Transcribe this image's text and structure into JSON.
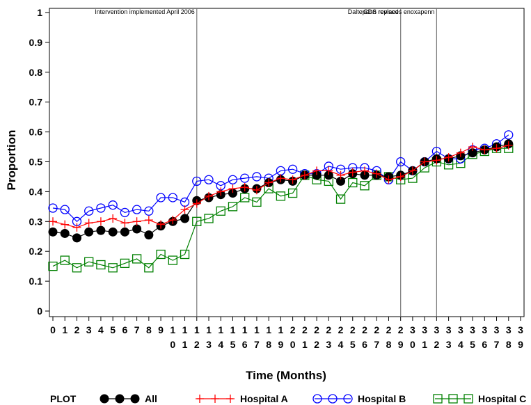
{
  "chart_data": {
    "type": "line",
    "title": "",
    "xlabel": "Time (Months)",
    "ylabel": "Proportion",
    "ylim": [
      0,
      1
    ],
    "xlim": [
      0,
      39
    ],
    "yticks": [
      "0",
      "0.1",
      "0.2",
      "0.3",
      "0.4",
      "0.5",
      "0.6",
      "0.7",
      "0.8",
      "0.9",
      "1"
    ],
    "x": [
      0,
      1,
      2,
      3,
      4,
      5,
      6,
      7,
      8,
      9,
      10,
      11,
      12,
      13,
      14,
      15,
      16,
      17,
      18,
      19,
      20,
      21,
      22,
      23,
      24,
      25,
      26,
      27,
      28,
      29,
      30,
      31,
      32,
      33,
      34,
      35,
      36,
      37,
      38,
      39
    ],
    "vlines": [
      {
        "x": 12,
        "label": "Intervention implemented April 2006"
      },
      {
        "x": 29,
        "label": "CDS revised"
      },
      {
        "x": 32,
        "label": "Daltepenn replaces enoxapenn"
      }
    ],
    "series": [
      {
        "name": "All",
        "color": "#000000",
        "marker": "filled-circle",
        "values": [
          0.265,
          0.26,
          0.245,
          0.265,
          0.27,
          0.265,
          0.265,
          0.275,
          0.255,
          0.285,
          0.3,
          0.31,
          0.37,
          0.38,
          0.39,
          0.395,
          0.41,
          0.41,
          0.43,
          0.44,
          0.435,
          0.455,
          0.455,
          0.455,
          0.435,
          0.46,
          0.455,
          0.455,
          0.45,
          0.455,
          0.47,
          0.5,
          0.51,
          0.51,
          0.52,
          0.53,
          0.54,
          0.55,
          0.56,
          null
        ]
      },
      {
        "name": "Hospital A",
        "color": "#ff0000",
        "marker": "plus",
        "values": [
          0.3,
          0.29,
          0.28,
          0.295,
          0.3,
          0.31,
          0.295,
          0.3,
          0.305,
          0.29,
          0.305,
          0.34,
          0.36,
          0.385,
          0.4,
          0.41,
          0.415,
          0.405,
          0.43,
          0.445,
          0.44,
          0.455,
          0.47,
          0.47,
          0.455,
          0.465,
          0.47,
          0.46,
          0.44,
          0.45,
          0.47,
          0.5,
          0.505,
          0.515,
          0.53,
          0.55,
          0.54,
          0.545,
          0.555,
          null
        ]
      },
      {
        "name": "Hospital B",
        "color": "#0000ff",
        "marker": "open-circle",
        "values": [
          0.345,
          0.34,
          0.3,
          0.335,
          0.345,
          0.355,
          0.33,
          0.34,
          0.335,
          0.38,
          0.38,
          0.365,
          0.435,
          0.44,
          0.42,
          0.44,
          0.445,
          0.45,
          0.445,
          0.47,
          0.475,
          0.46,
          0.46,
          0.485,
          0.475,
          0.48,
          0.48,
          0.47,
          0.44,
          0.5,
          0.47,
          0.5,
          0.535,
          0.51,
          0.51,
          0.54,
          0.545,
          0.56,
          0.59,
          null
        ]
      },
      {
        "name": "Hospital C",
        "color": "#008000",
        "marker": "open-square",
        "values": [
          0.15,
          0.17,
          0.145,
          0.165,
          0.155,
          0.145,
          0.16,
          0.175,
          0.145,
          0.19,
          0.17,
          0.19,
          0.3,
          0.31,
          0.335,
          0.35,
          0.38,
          0.365,
          0.41,
          0.385,
          0.395,
          0.455,
          0.44,
          0.435,
          0.375,
          0.43,
          0.42,
          0.455,
          0.45,
          0.44,
          0.445,
          0.48,
          0.5,
          0.49,
          0.495,
          0.525,
          0.535,
          0.545,
          0.545,
          null
        ]
      }
    ],
    "legend": {
      "placement": "bottom",
      "title": "PLOT"
    },
    "grid": false
  }
}
